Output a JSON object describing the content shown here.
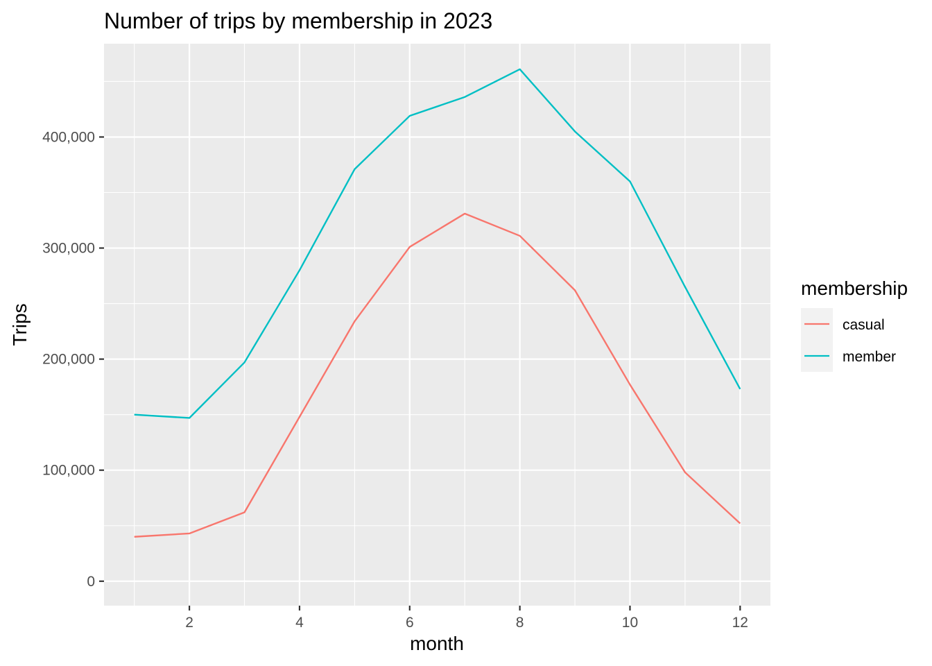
{
  "chart_data": {
    "type": "line",
    "title": "Number of trips by membership in 2023",
    "xlabel": "month",
    "ylabel": "Trips",
    "x": [
      1,
      2,
      3,
      4,
      5,
      6,
      7,
      8,
      9,
      10,
      11,
      12
    ],
    "xlim": [
      0.45,
      12.55
    ],
    "ylim": [
      -22000,
      484000
    ],
    "x_ticks": [
      2,
      4,
      6,
      8,
      10,
      12
    ],
    "x_tick_labels": [
      "2",
      "4",
      "6",
      "8",
      "10",
      "12"
    ],
    "y_ticks": [
      0,
      100000,
      200000,
      300000,
      400000
    ],
    "y_tick_labels": [
      "0",
      "100,000",
      "200,000",
      "300,000",
      "400,000"
    ],
    "grid": true,
    "legend": {
      "title": "membership",
      "placement": "right"
    },
    "series": [
      {
        "name": "casual",
        "color": "#F8766D",
        "values": [
          40000,
          43000,
          62000,
          148000,
          234000,
          301000,
          331000,
          311000,
          262000,
          177000,
          98000,
          52000
        ]
      },
      {
        "name": "member",
        "color": "#00BFC4",
        "values": [
          150000,
          147000,
          197000,
          280000,
          371000,
          419000,
          436000,
          461000,
          405000,
          360000,
          265000,
          173000
        ]
      }
    ]
  }
}
